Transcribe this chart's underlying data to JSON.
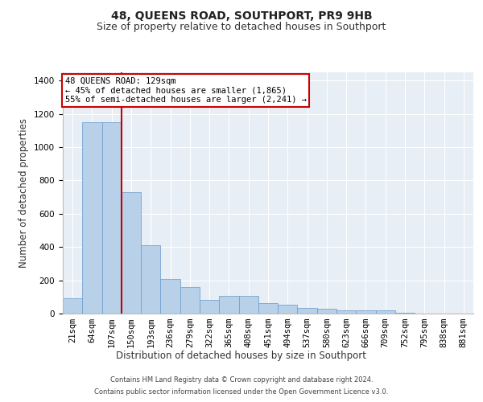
{
  "title": "48, QUEENS ROAD, SOUTHPORT, PR9 9HB",
  "subtitle": "Size of property relative to detached houses in Southport",
  "xlabel": "Distribution of detached houses by size in Southport",
  "ylabel": "Number of detached properties",
  "footer1": "Contains HM Land Registry data © Crown copyright and database right 2024.",
  "footer2": "Contains public sector information licensed under the Open Government Licence v3.0.",
  "categories": [
    "21sqm",
    "64sqm",
    "107sqm",
    "150sqm",
    "193sqm",
    "236sqm",
    "279sqm",
    "322sqm",
    "365sqm",
    "408sqm",
    "451sqm",
    "494sqm",
    "537sqm",
    "580sqm",
    "623sqm",
    "666sqm",
    "709sqm",
    "752sqm",
    "795sqm",
    "838sqm",
    "881sqm"
  ],
  "values": [
    90,
    1150,
    1150,
    730,
    410,
    210,
    160,
    80,
    105,
    105,
    65,
    55,
    35,
    30,
    20,
    20,
    20,
    5,
    0,
    0,
    0
  ],
  "bar_color": "#b8d0e8",
  "bar_edge_color": "#6699cc",
  "vline_x": 2.5,
  "vline_color": "#cc0000",
  "annotation_text": "48 QUEENS ROAD: 129sqm\n← 45% of detached houses are smaller (1,865)\n55% of semi-detached houses are larger (2,241) →",
  "annotation_box_color": "#cc0000",
  "ylim": [
    0,
    1450
  ],
  "yticks": [
    0,
    200,
    400,
    600,
    800,
    1000,
    1200,
    1400
  ],
  "bg_color": "#e8eef5",
  "grid_color": "#ffffff",
  "title_fontsize": 10,
  "subtitle_fontsize": 9,
  "axis_label_fontsize": 8.5,
  "tick_fontsize": 7.5,
  "annotation_fontsize": 7.5
}
